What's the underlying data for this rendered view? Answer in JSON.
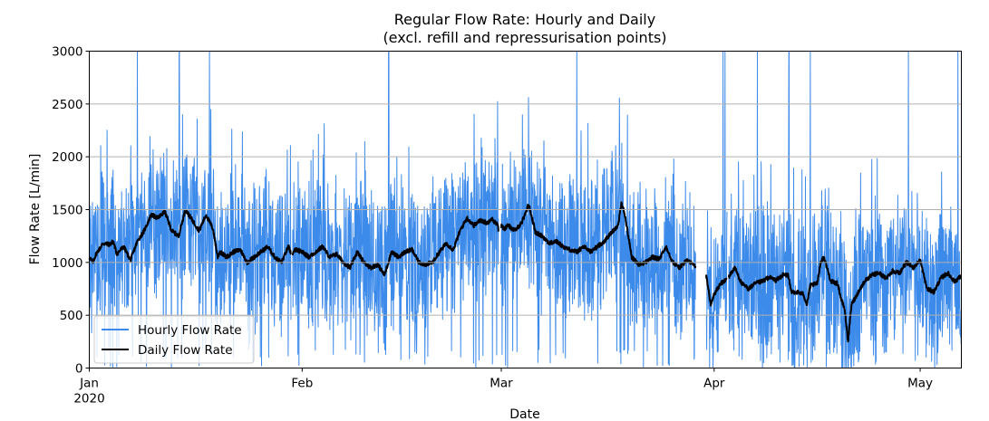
{
  "chart_data": {
    "type": "line",
    "title": "Regular Flow Rate: Hourly and Daily",
    "subtitle": "(excl. refill and repressurisation points)",
    "xlabel": "Date",
    "ylabel": "Flow Rate [L/min]",
    "ylim": [
      0,
      3000
    ],
    "xlim_days": [
      0,
      127
    ],
    "yticks": [
      0,
      500,
      1000,
      1500,
      2000,
      2500,
      3000
    ],
    "xticks": [
      {
        "day": 0,
        "label": "Jan",
        "sublabel": "2020"
      },
      {
        "day": 31,
        "label": "Feb",
        "sublabel": ""
      },
      {
        "day": 60,
        "label": "Mar",
        "sublabel": ""
      },
      {
        "day": 91,
        "label": "Apr",
        "sublabel": ""
      },
      {
        "day": 121,
        "label": "May",
        "sublabel": ""
      }
    ],
    "grid": "horizontal",
    "legend_position": "lower-left",
    "series": [
      {
        "name": "Hourly Flow Rate",
        "color": "#3c8aea",
        "resolution": "hourly",
        "spike_days": [
          7,
          13.1,
          17.5,
          43.6,
          71,
          89.1,
          92.3,
          92.6,
          97.3,
          101.9,
          105,
          119.3,
          126.5
        ],
        "gaps": [
          [
            29.4,
            29.6
          ],
          [
            59.6,
            59.9
          ],
          [
            88.3,
            89.8
          ],
          [
            92.9,
            93.1
          ]
        ]
      },
      {
        "name": "Daily Flow Rate",
        "color": "#000000",
        "resolution": "daily",
        "keypoints": [
          [
            0,
            1050
          ],
          [
            0.5,
            1000
          ],
          [
            1,
            1080
          ],
          [
            2,
            1180
          ],
          [
            3,
            1170
          ],
          [
            3.5,
            1200
          ],
          [
            4,
            1080
          ],
          [
            5,
            1150
          ],
          [
            6,
            1020
          ],
          [
            7,
            1200
          ],
          [
            8,
            1300
          ],
          [
            9,
            1450
          ],
          [
            10,
            1420
          ],
          [
            11,
            1480
          ],
          [
            12,
            1300
          ],
          [
            13,
            1250
          ],
          [
            14,
            1500
          ],
          [
            15,
            1400
          ],
          [
            16,
            1300
          ],
          [
            17,
            1450
          ],
          [
            18,
            1320
          ],
          [
            18.7,
            1050
          ],
          [
            19,
            1100
          ],
          [
            20,
            1050
          ],
          [
            21,
            1100
          ],
          [
            22,
            1120
          ],
          [
            23,
            1000
          ],
          [
            24,
            1050
          ],
          [
            25,
            1100
          ],
          [
            26,
            1150
          ],
          [
            27,
            1050
          ],
          [
            28,
            1000
          ],
          [
            29,
            1150
          ],
          [
            29.4,
            1080
          ],
          [
            29.6,
            1080
          ],
          [
            30,
            1120
          ],
          [
            31,
            1100
          ],
          [
            32,
            1050
          ],
          [
            33,
            1100
          ],
          [
            34,
            1150
          ],
          [
            35,
            1050
          ],
          [
            36,
            1080
          ],
          [
            37,
            1000
          ],
          [
            38,
            950
          ],
          [
            39,
            1100
          ],
          [
            40,
            1000
          ],
          [
            41,
            950
          ],
          [
            42,
            980
          ],
          [
            43,
            880
          ],
          [
            44,
            1100
          ],
          [
            45,
            1050
          ],
          [
            46,
            1100
          ],
          [
            47,
            1120
          ],
          [
            48,
            1000
          ],
          [
            49,
            980
          ],
          [
            50,
            1000
          ],
          [
            51,
            1100
          ],
          [
            52,
            1180
          ],
          [
            53,
            1120
          ],
          [
            54,
            1300
          ],
          [
            55,
            1420
          ],
          [
            56,
            1350
          ],
          [
            57,
            1400
          ],
          [
            58,
            1370
          ],
          [
            58.5,
            1420
          ],
          [
            59.5,
            1350
          ],
          [
            59.6,
            1300
          ],
          [
            59.9,
            1350
          ],
          [
            60.5,
            1320
          ],
          [
            61,
            1350
          ],
          [
            62,
            1300
          ],
          [
            63,
            1380
          ],
          [
            64,
            1550
          ],
          [
            65,
            1280
          ],
          [
            66,
            1250
          ],
          [
            67,
            1180
          ],
          [
            68,
            1200
          ],
          [
            69,
            1150
          ],
          [
            70,
            1120
          ],
          [
            71,
            1100
          ],
          [
            72,
            1150
          ],
          [
            73,
            1100
          ],
          [
            74,
            1150
          ],
          [
            75,
            1200
          ],
          [
            76,
            1280
          ],
          [
            77,
            1350
          ],
          [
            77.5,
            1560
          ],
          [
            78,
            1450
          ],
          [
            79,
            1050
          ],
          [
            80,
            980
          ],
          [
            81,
            1000
          ],
          [
            82,
            1050
          ],
          [
            83,
            1030
          ],
          [
            84,
            1150
          ],
          [
            85,
            1000
          ],
          [
            86,
            950
          ],
          [
            87,
            1020
          ],
          [
            88,
            980
          ],
          [
            88.3,
            950
          ],
          [
            89.8,
            900
          ],
          [
            90.5,
            600
          ],
          [
            91,
            700
          ],
          [
            92,
            800
          ],
          [
            93,
            850
          ],
          [
            94,
            950
          ],
          [
            95,
            800
          ],
          [
            96,
            750
          ],
          [
            97,
            800
          ],
          [
            98,
            820
          ],
          [
            99,
            860
          ],
          [
            100,
            830
          ],
          [
            101,
            880
          ],
          [
            101.8,
            880
          ],
          [
            102.2,
            720
          ],
          [
            103,
            720
          ],
          [
            104,
            700
          ],
          [
            104.5,
            600
          ],
          [
            105,
            780
          ],
          [
            106,
            800
          ],
          [
            106.5,
            1000
          ],
          [
            107,
            1050
          ],
          [
            108,
            820
          ],
          [
            109,
            800
          ],
          [
            109.5,
            650
          ],
          [
            110,
            560
          ],
          [
            110.5,
            250
          ],
          [
            111,
            600
          ],
          [
            112,
            720
          ],
          [
            113,
            830
          ],
          [
            114,
            880
          ],
          [
            115,
            900
          ],
          [
            116,
            850
          ],
          [
            117,
            920
          ],
          [
            118,
            900
          ],
          [
            119,
            1000
          ],
          [
            120,
            950
          ],
          [
            121,
            1020
          ],
          [
            122,
            750
          ],
          [
            123,
            720
          ],
          [
            124,
            850
          ],
          [
            125,
            900
          ],
          [
            126,
            820
          ],
          [
            127,
            870
          ]
        ]
      }
    ]
  }
}
